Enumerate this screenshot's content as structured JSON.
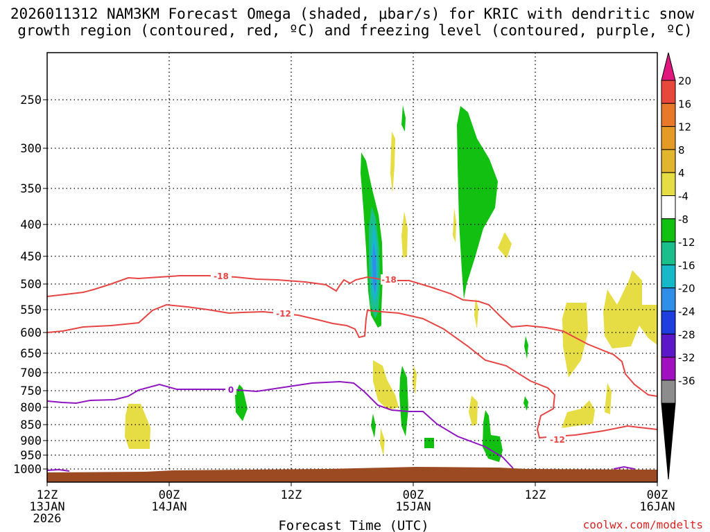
{
  "chart_data": {
    "type": "time-height cross section",
    "title_line1": "2026011312 NAM3KM Forecast Omega (shaded, μbar/s) for KRIC with dendritic snow",
    "title_line2": "growth region (contoured, red, ºC) and freezing level (contoured, purple, ºC)",
    "xlabel": "Forecast Time (UTC)",
    "credit": "coolwx.com/modelts",
    "x_ticks": [
      {
        "hour": 0,
        "line1": "12Z",
        "line2": "13JAN",
        "line3": "2026"
      },
      {
        "hour": 12,
        "line1": "00Z",
        "line2": "14JAN",
        "line3": ""
      },
      {
        "hour": 24,
        "line1": "12Z",
        "line2": "",
        "line3": ""
      },
      {
        "hour": 36,
        "line1": "00Z",
        "line2": "15JAN",
        "line3": ""
      },
      {
        "hour": 48,
        "line1": "12Z",
        "line2": "",
        "line3": ""
      },
      {
        "hour": 60,
        "line1": "00Z",
        "line2": "16JAN",
        "line3": ""
      }
    ],
    "x_range_hours": [
      0,
      60
    ],
    "y_ticks_hpa": [
      250,
      300,
      350,
      400,
      450,
      500,
      550,
      600,
      650,
      700,
      750,
      800,
      850,
      900,
      950,
      1000
    ],
    "y_range_hpa": [
      200,
      1020
    ],
    "grid": true,
    "colorbar": {
      "ticks": [
        "20",
        "16",
        "12",
        "8",
        "4",
        "-4",
        "-8",
        "-12",
        "-16",
        "-20",
        "-24",
        "-28",
        "-32",
        "-36"
      ],
      "colors": [
        "#e0177d",
        "#e8473c",
        "#e8782a",
        "#e49a24",
        "#e2b52e",
        "#e6dc44",
        "#ffffff",
        "#12c012",
        "#1abf8c",
        "#17b8c8",
        "#2e8ee8",
        "#1f3ee0",
        "#5a18c8",
        "#a010c0",
        "#8c8c8c",
        "#000000"
      ]
    },
    "contours": [
      {
        "value": "-18",
        "color": "#e84444"
      },
      {
        "value": "-12",
        "color": "#e84444"
      },
      {
        "value": "0",
        "color": "#9014c0"
      }
    ],
    "terrain_color": "#9c4a22"
  }
}
